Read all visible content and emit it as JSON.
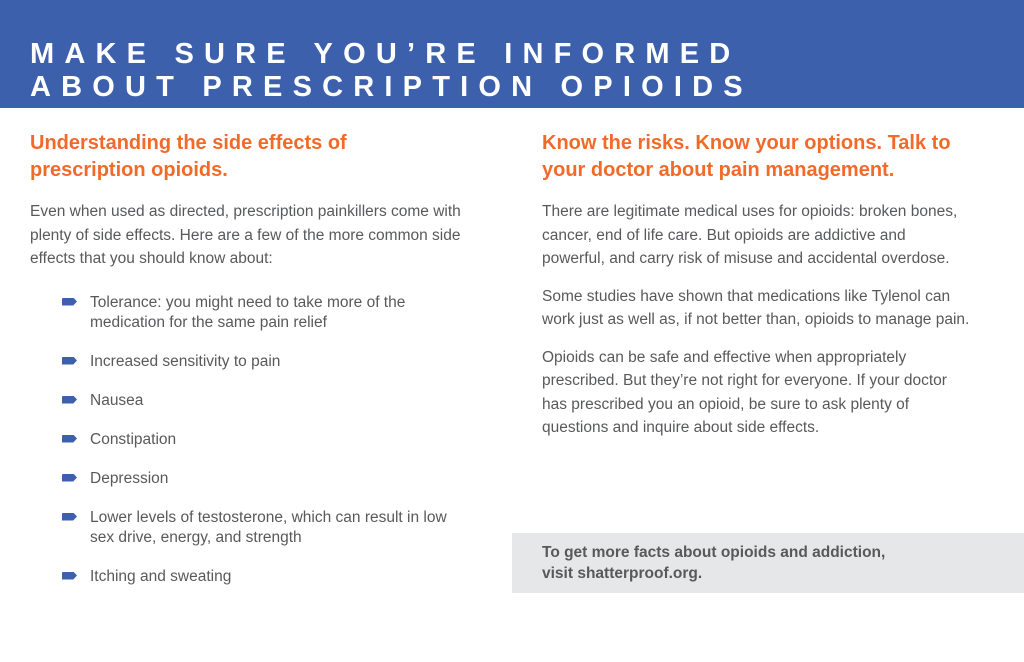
{
  "header": {
    "title_lines": [
      "MAKE SURE YOU’RE INFORMED",
      "ABOUT PRESCRIPTION OPIOIDS"
    ],
    "background": "#3d60ac"
  },
  "left": {
    "heading_lines": [
      "Understanding the side effects of",
      "prescription opioids."
    ],
    "intro": "Even when used as directed, prescription painkillers come with plenty of side effects. Here are a few of the more common side effects that you should know about:",
    "bullet_icon": "arrow-bullet-icon",
    "items": [
      "Tolerance: you might need to take more of the medication for the same pain relief",
      "Increased sensitivity to pain",
      "Nausea",
      "Constipation",
      "Depression",
      "Lower levels of testosterone, which can result in low sex drive, energy, and strength",
      "Itching and sweating"
    ]
  },
  "right": {
    "heading_lines": [
      "Know the risks. Know your options. Talk to",
      "your doctor about pain management."
    ],
    "paragraphs": [
      "There are legitimate medical uses for opioids: broken bones, cancer, end of life care. But opioids are addictive and powerful, and carry risk of misuse and accidental overdose.",
      "Some studies have shown that medications like Tylenol can work just as well as, if not better than, opioids to manage pain.",
      "Opioids can be safe and effective when appropriately prescribed. But they’re not right for everyone. If your doctor has prescribed you an opioid, be sure to ask plenty of questions and inquire about side effects."
    ]
  },
  "cta": {
    "lines": [
      "To get more facts about opioids and addiction,",
      "visit shatterproof.org."
    ]
  },
  "colors": {
    "accent_orange": "#f26a2a",
    "brand_blue": "#3d60ac",
    "cta_background": "#e6e7e9"
  }
}
